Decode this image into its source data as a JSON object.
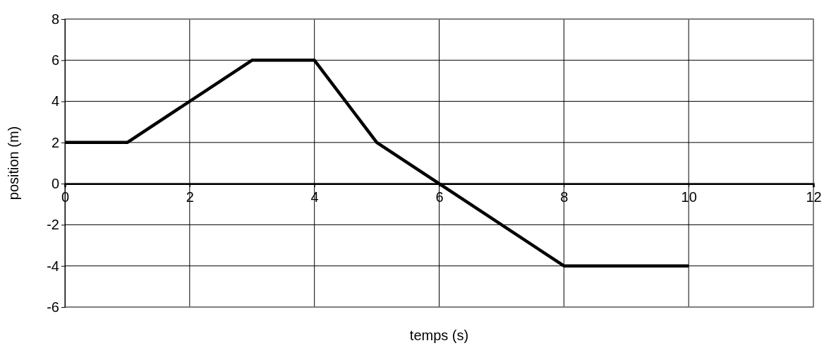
{
  "chart_data": {
    "type": "line",
    "xlabel": "temps (s)",
    "ylabel": "position (m)",
    "x": [
      0,
      1,
      3,
      4,
      5,
      8,
      10
    ],
    "series": [
      {
        "color": "#000000",
        "values": [
          2,
          2,
          6,
          6,
          2,
          -4,
          -4
        ]
      }
    ],
    "xlim": [
      0,
      12
    ],
    "xticks": [
      0,
      2,
      4,
      6,
      8,
      10,
      12
    ],
    "ylim": [
      -6,
      8
    ],
    "yticks": [
      -6,
      -4,
      -2,
      0,
      2,
      4,
      6,
      8
    ],
    "grid": true,
    "marker": "none",
    "line_style": "solid"
  }
}
